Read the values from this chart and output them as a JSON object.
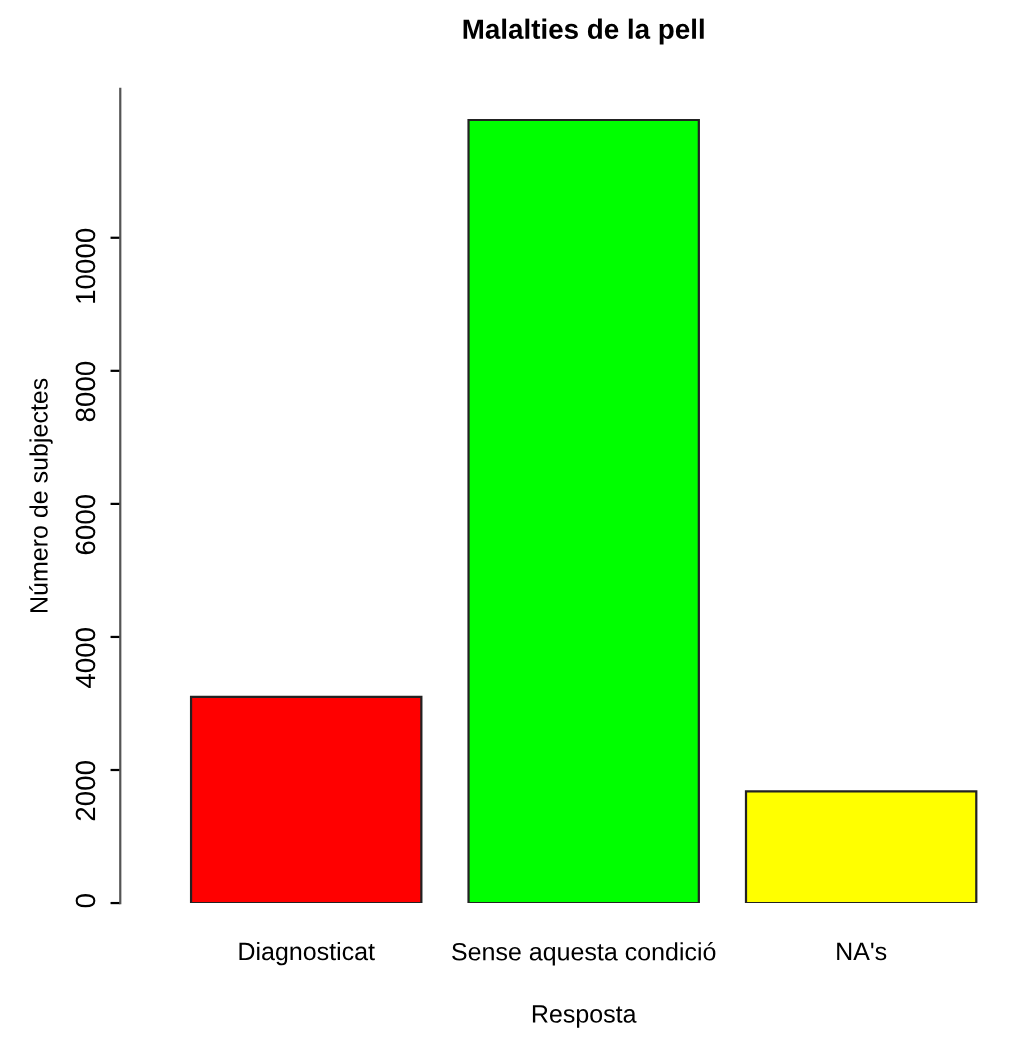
{
  "chart_data": {
    "type": "bar",
    "title": "Malalties de la pell",
    "xlabel": "Resposta",
    "ylabel": "Número de subjectes",
    "categories": [
      "Diagnosticat",
      "Sense aquesta condició",
      "NA's"
    ],
    "values": [
      3100,
      11770,
      1680
    ],
    "colors": [
      "#ff0000",
      "#00ff00",
      "#ffff00"
    ],
    "ylim": [
      0,
      12240
    ],
    "yticks": [
      0,
      2000,
      4000,
      6000,
      8000,
      10000
    ],
    "grid": false
  }
}
